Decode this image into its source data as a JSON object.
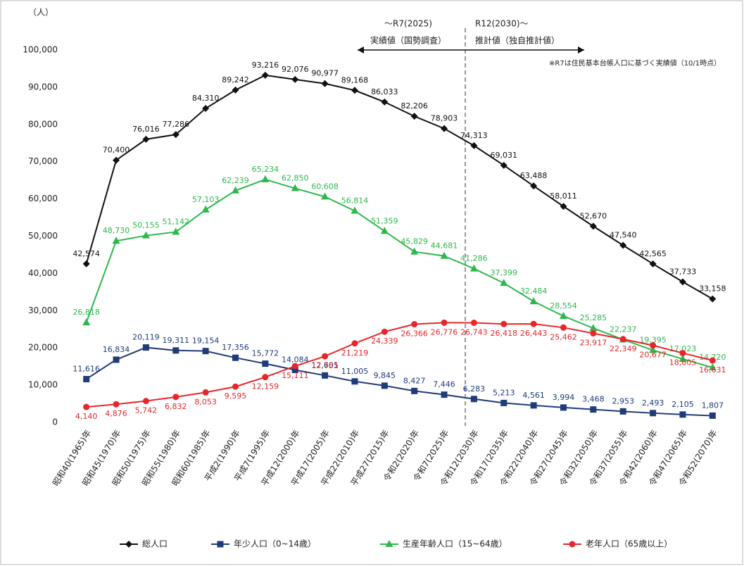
{
  "chart_data": {
    "type": "line",
    "y_unit": "（人）",
    "annotations": {
      "actual_period": "～R7(2025)",
      "actual_label": "実績値（国勢調査）",
      "estimate_period": "R12(2030)～",
      "estimate_label": "推計値（独自推計値）",
      "note": "※R7は住民基本台帳人口に基づく実績値（10/1時点）"
    },
    "categories": [
      "昭和40(1965)年",
      "昭和45(1970)年",
      "昭和50(1975)年",
      "昭和55(1980)年",
      "昭和60(1985)年",
      "平成2(1990)年",
      "平成7(1995)年",
      "平成12(2000)年",
      "平成17(2005)年",
      "平成22(2010)年",
      "平成27(2015)年",
      "令和2(2020)年",
      "令和7(2025)年",
      "令和12(2030)年",
      "令和17(2035)年",
      "令和22(2040)年",
      "令和27(2045)年",
      "令和32(2050)年",
      "令和37(2055)年",
      "令和42(2060)年",
      "令和47(2065)年",
      "令和52(2070)年"
    ],
    "series": [
      {
        "name": "総人口",
        "color": "#111111",
        "marker": "diamond",
        "label_side": "above",
        "values": [
          42574,
          70400,
          76016,
          77286,
          84310,
          89242,
          93216,
          92076,
          90977,
          89168,
          86033,
          82206,
          78903,
          74313,
          69031,
          63488,
          58011,
          52670,
          47540,
          42565,
          37733,
          33158
        ],
        "value_labels": [
          "42,574",
          "70,400",
          "76,016",
          "77,286",
          "84,310",
          "89,242",
          "93,216",
          "92,076",
          "90,977",
          "89,168",
          "86,033",
          "82,206",
          "78,903",
          "74,313",
          "69,031",
          "63,488",
          "58,011",
          "52,670",
          "47,540",
          "42,565",
          "37,733",
          "33,158"
        ]
      },
      {
        "name": "年少人口（0~14歳）",
        "color": "#1f3b78",
        "marker": "square",
        "label_side": "above",
        "values": [
          11616,
          16834,
          20119,
          19311,
          19154,
          17356,
          15772,
          14084,
          12605,
          11005,
          9845,
          8427,
          7446,
          6283,
          5213,
          4561,
          3994,
          3468,
          2953,
          2493,
          2105,
          1807
        ],
        "value_labels": [
          "11,616",
          "16,834",
          "20,119",
          "19,311",
          "19,154",
          "17,356",
          "15,772",
          "14,084",
          "12,605",
          "11,005",
          "9,845",
          "8,427",
          "7,446",
          "6,283",
          "5,213",
          "4,561",
          "3,994",
          "3,468",
          "2,953",
          "2,493",
          "2,105",
          "1,807"
        ]
      },
      {
        "name": "生産年齢人口（15~64歳）",
        "color": "#2db84c",
        "marker": "triangle",
        "label_side": "above",
        "values": [
          26818,
          48730,
          50155,
          51142,
          57103,
          62239,
          65234,
          62850,
          60608,
          56814,
          51359,
          45829,
          44681,
          41286,
          37399,
          32484,
          28554,
          25285,
          22237,
          19395,
          17023,
          14720
        ],
        "value_labels": [
          "26,818",
          "48,730",
          "50,155",
          "51,142",
          "57,103",
          "62,239",
          "65,234",
          "62,850",
          "60,608",
          "56,814",
          "51,359",
          "45,829",
          "44,681",
          "41,286",
          "37,399",
          "32,484",
          "28,554",
          "25,285",
          "22,237",
          "19,395",
          "17,023",
          "14,720"
        ]
      },
      {
        "name": "老年人口（65歳以上）",
        "color": "#e8262a",
        "marker": "circle",
        "label_side": "below",
        "values": [
          4140,
          4876,
          5742,
          6832,
          8053,
          9595,
          12159,
          15111,
          17751,
          21219,
          24339,
          26366,
          26776,
          26743,
          26418,
          26443,
          25462,
          23917,
          22349,
          20677,
          18605,
          16631
        ],
        "value_labels": [
          "4,140",
          "4,876",
          "5,742",
          "6,832",
          "8,053",
          "9,595",
          "12,159",
          "15,111",
          "17,751",
          "21,219",
          "24,339",
          "26,366",
          "26,776",
          "26,743",
          "26,418",
          "26,443",
          "25,462",
          "23,917",
          "22,349",
          "20,677",
          "18,605",
          "16,631"
        ]
      }
    ],
    "ylim": [
      0,
      100000
    ],
    "yticks": [
      0,
      {
        "value": 10000,
        "label": "10,000"
      },
      {
        "value": 20000,
        "label": "20,000"
      },
      {
        "value": 30000,
        "label": "30,000"
      },
      {
        "value": 40000,
        "label": "40,000"
      },
      {
        "value": 50000,
        "label": "50,000"
      },
      {
        "value": 60000,
        "label": "60,000"
      },
      {
        "value": 70000,
        "label": "70,000"
      },
      {
        "value": 80000,
        "label": "80,000"
      },
      {
        "value": 90000,
        "label": "90,000"
      },
      {
        "value": 100000,
        "label": "100,000"
      }
    ],
    "grid": false
  }
}
